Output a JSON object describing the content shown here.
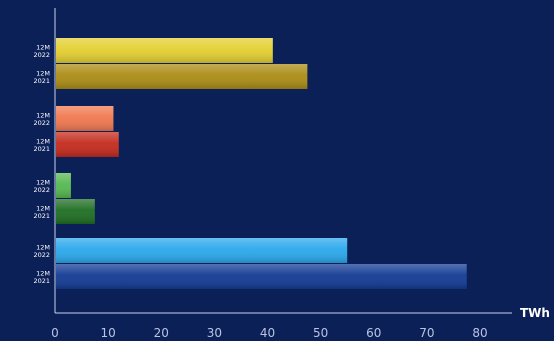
{
  "chart_data": {
    "type": "bar",
    "orientation": "horizontal",
    "title": "",
    "xlabel": "",
    "ylabel": "",
    "unit_label": "TWh",
    "xlim": [
      0,
      80
    ],
    "x_ticks": [
      "0",
      "10",
      "20",
      "30",
      "40",
      "50",
      "60",
      "70",
      "80"
    ],
    "grid": false,
    "legend": "none",
    "groups": [
      {
        "bars": [
          {
            "period": "12M",
            "year": "2022",
            "value": 41,
            "color": "#e3cf30"
          },
          {
            "period": "12M",
            "year": "2021",
            "value": 47.5,
            "color": "#ab8c14"
          }
        ]
      },
      {
        "bars": [
          {
            "period": "12M",
            "year": "2022",
            "value": 11,
            "color": "#f07850"
          },
          {
            "period": "12M",
            "year": "2021",
            "value": 12,
            "color": "#c42a1c"
          }
        ]
      },
      {
        "bars": [
          {
            "period": "12M",
            "year": "2022",
            "value": 3,
            "color": "#56b850"
          },
          {
            "period": "12M",
            "year": "2021",
            "value": 7.5,
            "color": "#1e6e22"
          }
        ]
      },
      {
        "bars": [
          {
            "period": "12M",
            "year": "2022",
            "value": 55,
            "color": "#29a8ec"
          },
          {
            "period": "12M",
            "year": "2021",
            "value": 77.5,
            "color": "#123a94"
          }
        ]
      }
    ]
  }
}
